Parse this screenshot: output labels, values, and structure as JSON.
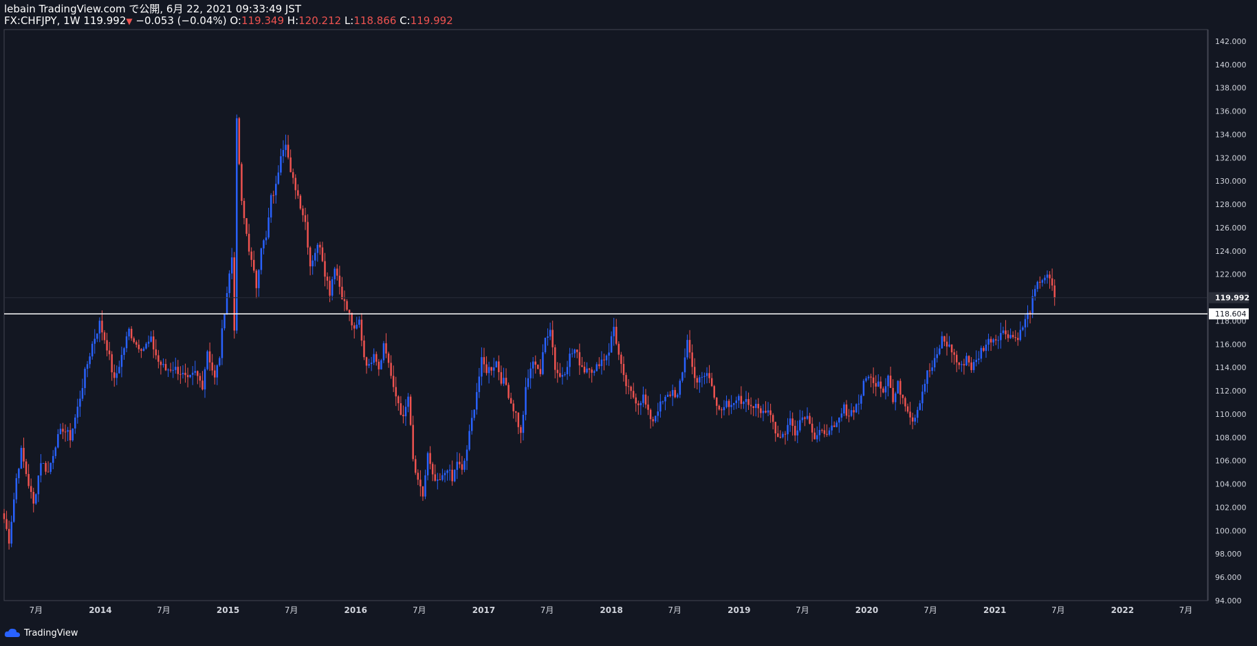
{
  "header": {
    "published": "lebain TradingView.com で公開, 6月 22, 2021 09:33:49 JST",
    "symbol": "FX:CHFJPY, 1W",
    "last": "119.992",
    "change": "−0.053 (−0.04%)",
    "o_label": "O:",
    "o_value": "119.349",
    "h_label": "H:",
    "h_value": "120.212",
    "l_label": "L:",
    "l_value": "118.866",
    "c_label": "C:",
    "c_value": "119.992"
  },
  "footer": {
    "brand": "TradingView",
    "icon": "tradingview-cloud-icon"
  },
  "colors": {
    "background": "#131722",
    "up": "#2962ff",
    "down": "#ef5350",
    "axis_text": "#d1d4dc",
    "hline": "#ffffff",
    "border": "#787b86"
  },
  "chart_data": {
    "type": "candlestick",
    "title": "",
    "xlabel": "",
    "ylabel": "",
    "ylim": [
      94,
      143
    ],
    "yticks": [
      "94.000",
      "96.000",
      "98.000",
      "100.000",
      "102.000",
      "104.000",
      "106.000",
      "108.000",
      "110.000",
      "112.000",
      "114.000",
      "116.000",
      "118.000",
      "120.000",
      "122.000",
      "124.000",
      "126.000",
      "128.000",
      "130.000",
      "132.000",
      "134.000",
      "136.000",
      "138.000",
      "140.000",
      "142.000"
    ],
    "xticks": [
      {
        "date": "2013-07",
        "label": "7月"
      },
      {
        "date": "2014-01",
        "label": "2014"
      },
      {
        "date": "2014-07",
        "label": "7月"
      },
      {
        "date": "2015-01",
        "label": "2015"
      },
      {
        "date": "2015-07",
        "label": "7月"
      },
      {
        "date": "2016-01",
        "label": "2016"
      },
      {
        "date": "2016-07",
        "label": "7月"
      },
      {
        "date": "2017-01",
        "label": "2017"
      },
      {
        "date": "2017-07",
        "label": "7月"
      },
      {
        "date": "2018-01",
        "label": "2018"
      },
      {
        "date": "2018-07",
        "label": "7月"
      },
      {
        "date": "2019-01",
        "label": "2019"
      },
      {
        "date": "2019-07",
        "label": "7月"
      },
      {
        "date": "2020-01",
        "label": "2020"
      },
      {
        "date": "2020-07",
        "label": "7月"
      },
      {
        "date": "2021-01",
        "label": "2021"
      },
      {
        "date": "2021-07",
        "label": "7月"
      },
      {
        "date": "2022-01",
        "label": "2022"
      },
      {
        "date": "2022-07",
        "label": "7月"
      }
    ],
    "x_range": [
      "2013-04-01",
      "2022-09-01"
    ],
    "last_price": {
      "value": 119.992,
      "label": "119.992"
    },
    "horizontal_line": {
      "value": 118.604,
      "label": "118.604"
    },
    "series": [
      {
        "name": "",
        "close_path": [
          [
            "2013-04-01",
            101.0
          ],
          [
            "2013-04-15",
            99.2
          ],
          [
            "2013-05-06",
            104.5
          ],
          [
            "2013-05-20",
            106.8
          ],
          [
            "2013-06-10",
            104.0
          ],
          [
            "2013-06-24",
            102.2
          ],
          [
            "2013-07-15",
            106.0
          ],
          [
            "2013-08-05",
            105.0
          ],
          [
            "2013-08-26",
            107.5
          ],
          [
            "2013-09-16",
            108.8
          ],
          [
            "2013-10-07",
            108.0
          ],
          [
            "2013-10-28",
            110.5
          ],
          [
            "2013-11-18",
            113.5
          ],
          [
            "2013-12-09",
            116.0
          ],
          [
            "2013-12-30",
            117.8
          ],
          [
            "2014-01-20",
            115.8
          ],
          [
            "2014-02-10",
            112.8
          ],
          [
            "2014-03-03",
            115.0
          ],
          [
            "2014-03-24",
            117.2
          ],
          [
            "2014-04-14",
            116.0
          ],
          [
            "2014-05-05",
            115.7
          ],
          [
            "2014-05-26",
            116.3
          ],
          [
            "2014-06-16",
            114.5
          ],
          [
            "2014-07-07",
            113.8
          ],
          [
            "2014-07-28",
            114.0
          ],
          [
            "2014-08-18",
            113.6
          ],
          [
            "2014-09-08",
            112.8
          ],
          [
            "2014-09-29",
            113.5
          ],
          [
            "2014-10-20",
            112.5
          ],
          [
            "2014-11-03",
            115.5
          ],
          [
            "2014-11-24",
            113.0
          ],
          [
            "2014-12-08",
            115.0
          ],
          [
            "2014-12-22",
            119.0
          ],
          [
            "2015-01-05",
            122.0
          ],
          [
            "2015-01-12",
            123.5
          ],
          [
            "2015-01-19",
            117.5
          ],
          [
            "2015-01-26",
            135.0
          ],
          [
            "2015-02-09",
            128.0
          ],
          [
            "2015-02-23",
            125.5
          ],
          [
            "2015-03-09",
            123.0
          ],
          [
            "2015-03-23",
            121.0
          ],
          [
            "2015-04-06",
            124.5
          ],
          [
            "2015-04-20",
            125.0
          ],
          [
            "2015-05-04",
            128.5
          ],
          [
            "2015-05-18",
            129.5
          ],
          [
            "2015-06-01",
            132.5
          ],
          [
            "2015-06-15",
            133.5
          ],
          [
            "2015-06-29",
            130.5
          ],
          [
            "2015-07-13",
            129.5
          ],
          [
            "2015-07-27",
            128.0
          ],
          [
            "2015-08-10",
            126.5
          ],
          [
            "2015-08-24",
            122.8
          ],
          [
            "2015-09-07",
            124.0
          ],
          [
            "2015-09-21",
            124.6
          ],
          [
            "2015-10-05",
            122.2
          ],
          [
            "2015-10-19",
            120.5
          ],
          [
            "2015-11-02",
            122.8
          ],
          [
            "2015-11-16",
            121.0
          ],
          [
            "2015-11-30",
            119.5
          ],
          [
            "2015-12-14",
            118.5
          ],
          [
            "2015-12-28",
            117.0
          ],
          [
            "2016-01-11",
            118.0
          ],
          [
            "2016-01-25",
            115.0
          ],
          [
            "2016-02-08",
            114.0
          ],
          [
            "2016-02-22",
            115.5
          ],
          [
            "2016-03-07",
            114.0
          ],
          [
            "2016-03-21",
            116.0
          ],
          [
            "2016-04-04",
            114.5
          ],
          [
            "2016-04-18",
            112.0
          ],
          [
            "2016-05-02",
            111.0
          ],
          [
            "2016-05-16",
            109.5
          ],
          [
            "2016-05-30",
            111.5
          ],
          [
            "2016-06-13",
            106.0
          ],
          [
            "2016-06-27",
            104.0
          ],
          [
            "2016-07-11",
            103.0
          ],
          [
            "2016-07-25",
            106.5
          ],
          [
            "2016-08-08",
            104.5
          ],
          [
            "2016-08-22",
            104.0
          ],
          [
            "2016-09-05",
            104.5
          ],
          [
            "2016-09-19",
            105.5
          ],
          [
            "2016-10-03",
            104.2
          ],
          [
            "2016-10-17",
            106.0
          ],
          [
            "2016-10-31",
            105.0
          ],
          [
            "2016-11-14",
            107.0
          ],
          [
            "2016-11-28",
            109.5
          ],
          [
            "2016-12-12",
            112.0
          ],
          [
            "2016-12-26",
            114.5
          ],
          [
            "2017-01-09",
            113.8
          ],
          [
            "2017-01-23",
            114.0
          ],
          [
            "2017-02-06",
            114.5
          ],
          [
            "2017-02-20",
            113.0
          ],
          [
            "2017-03-06",
            112.5
          ],
          [
            "2017-03-20",
            111.0
          ],
          [
            "2017-04-03",
            110.0
          ],
          [
            "2017-04-17",
            108.2
          ],
          [
            "2017-05-01",
            112.0
          ],
          [
            "2017-05-15",
            114.0
          ],
          [
            "2017-05-29",
            114.5
          ],
          [
            "2017-06-12",
            113.5
          ],
          [
            "2017-06-26",
            116.5
          ],
          [
            "2017-07-10",
            117.5
          ],
          [
            "2017-07-24",
            114.0
          ],
          [
            "2017-08-07",
            113.2
          ],
          [
            "2017-08-21",
            113.8
          ],
          [
            "2017-09-04",
            115.0
          ],
          [
            "2017-09-18",
            115.5
          ],
          [
            "2017-10-02",
            114.5
          ],
          [
            "2017-10-16",
            113.8
          ],
          [
            "2017-10-30",
            114.2
          ],
          [
            "2017-11-13",
            113.5
          ],
          [
            "2017-11-27",
            114.5
          ],
          [
            "2017-12-11",
            114.8
          ],
          [
            "2017-12-25",
            115.5
          ],
          [
            "2018-01-08",
            117.5
          ],
          [
            "2018-01-22",
            115.0
          ],
          [
            "2018-02-05",
            113.0
          ],
          [
            "2018-02-19",
            112.0
          ],
          [
            "2018-03-05",
            111.5
          ],
          [
            "2018-03-19",
            111.0
          ],
          [
            "2018-04-02",
            111.5
          ],
          [
            "2018-04-16",
            110.0
          ],
          [
            "2018-04-30",
            109.5
          ],
          [
            "2018-05-14",
            110.5
          ],
          [
            "2018-05-28",
            111.0
          ],
          [
            "2018-06-11",
            111.5
          ],
          [
            "2018-06-25",
            112.0
          ],
          [
            "2018-07-09",
            111.5
          ],
          [
            "2018-07-23",
            113.5
          ],
          [
            "2018-08-06",
            116.5
          ],
          [
            "2018-08-20",
            114.0
          ],
          [
            "2018-09-03",
            112.8
          ],
          [
            "2018-09-17",
            113.0
          ],
          [
            "2018-10-01",
            113.5
          ],
          [
            "2018-10-15",
            112.5
          ],
          [
            "2018-10-29",
            111.0
          ],
          [
            "2018-11-12",
            110.0
          ],
          [
            "2018-11-26",
            110.8
          ],
          [
            "2018-12-10",
            110.5
          ],
          [
            "2018-12-24",
            111.5
          ],
          [
            "2019-01-07",
            111.0
          ],
          [
            "2019-01-21",
            111.5
          ],
          [
            "2019-02-04",
            110.8
          ],
          [
            "2019-02-18",
            110.5
          ],
          [
            "2019-03-04",
            110.0
          ],
          [
            "2019-03-18",
            110.5
          ],
          [
            "2019-04-01",
            110.2
          ],
          [
            "2019-04-15",
            108.5
          ],
          [
            "2019-04-29",
            108.0
          ],
          [
            "2019-05-13",
            108.5
          ],
          [
            "2019-05-27",
            109.5
          ],
          [
            "2019-06-10",
            108.5
          ],
          [
            "2019-06-24",
            109.5
          ],
          [
            "2019-07-08",
            110.0
          ],
          [
            "2019-07-22",
            109.5
          ],
          [
            "2019-08-05",
            108.0
          ],
          [
            "2019-08-19",
            108.5
          ],
          [
            "2019-09-02",
            108.0
          ],
          [
            "2019-09-16",
            109.0
          ],
          [
            "2019-09-30",
            108.5
          ],
          [
            "2019-10-14",
            109.5
          ],
          [
            "2019-10-28",
            110.5
          ],
          [
            "2019-11-11",
            110.0
          ],
          [
            "2019-11-25",
            110.5
          ],
          [
            "2019-12-09",
            111.0
          ],
          [
            "2019-12-23",
            112.5
          ],
          [
            "2020-01-06",
            113.5
          ],
          [
            "2020-01-20",
            112.5
          ],
          [
            "2020-02-03",
            113.0
          ],
          [
            "2020-02-17",
            112.0
          ],
          [
            "2020-03-02",
            113.5
          ],
          [
            "2020-03-16",
            111.0
          ],
          [
            "2020-03-30",
            112.5
          ],
          [
            "2020-04-13",
            111.5
          ],
          [
            "2020-04-27",
            110.5
          ],
          [
            "2020-05-11",
            109.5
          ],
          [
            "2020-05-25",
            110.5
          ],
          [
            "2020-06-08",
            112.0
          ],
          [
            "2020-06-22",
            113.5
          ],
          [
            "2020-07-06",
            114.0
          ],
          [
            "2020-07-20",
            115.0
          ],
          [
            "2020-08-03",
            116.5
          ],
          [
            "2020-08-17",
            116.0
          ],
          [
            "2020-08-31",
            115.5
          ],
          [
            "2020-09-14",
            114.5
          ],
          [
            "2020-09-28",
            114.0
          ],
          [
            "2020-10-12",
            115.0
          ],
          [
            "2020-10-26",
            114.0
          ],
          [
            "2020-11-09",
            114.5
          ],
          [
            "2020-11-23",
            115.5
          ],
          [
            "2020-12-07",
            116.0
          ],
          [
            "2020-12-21",
            116.5
          ],
          [
            "2021-01-04",
            116.5
          ],
          [
            "2021-01-18",
            117.0
          ],
          [
            "2021-02-01",
            117.0
          ],
          [
            "2021-02-15",
            116.8
          ],
          [
            "2021-03-01",
            116.5
          ],
          [
            "2021-03-15",
            117.0
          ],
          [
            "2021-03-29",
            118.0
          ],
          [
            "2021-04-12",
            119.0
          ],
          [
            "2021-04-26",
            120.5
          ],
          [
            "2021-05-10",
            121.5
          ],
          [
            "2021-05-24",
            121.8
          ],
          [
            "2021-06-07",
            121.5
          ],
          [
            "2021-06-21",
            119.992
          ]
        ]
      }
    ]
  }
}
